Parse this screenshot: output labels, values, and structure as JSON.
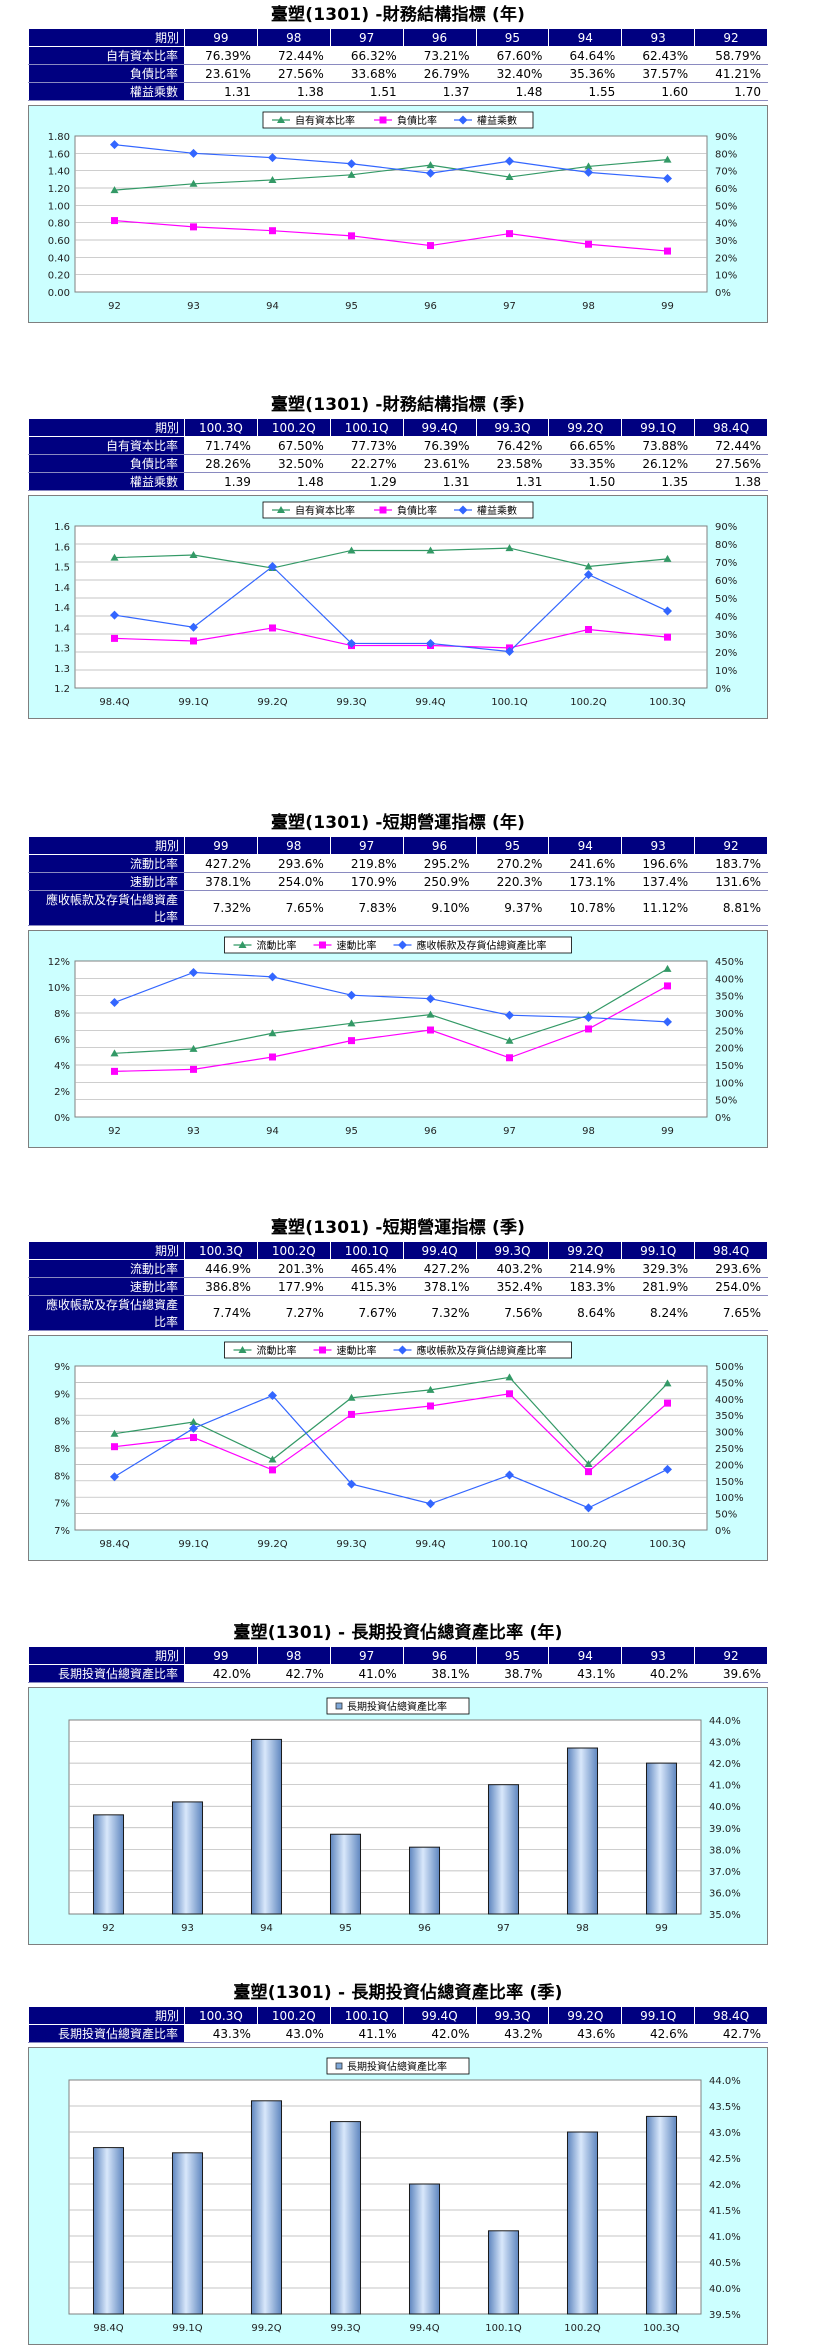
{
  "sections": [
    {
      "id": "s1",
      "title": "臺塑(1301) -財務結構指標 (年)",
      "headers": [
        "期別",
        "99",
        "98",
        "97",
        "96",
        "95",
        "94",
        "93",
        "92"
      ],
      "rows": [
        {
          "label": "自有資本比率",
          "values": [
            "76.39%",
            "72.44%",
            "66.32%",
            "73.21%",
            "67.60%",
            "64.64%",
            "62.43%",
            "58.79%"
          ]
        },
        {
          "label": "負債比率",
          "values": [
            "23.61%",
            "27.56%",
            "33.68%",
            "26.79%",
            "32.40%",
            "35.36%",
            "37.57%",
            "41.21%"
          ]
        },
        {
          "label": "權益乘數",
          "values": [
            "1.31",
            "1.38",
            "1.51",
            "1.37",
            "1.48",
            "1.55",
            "1.60",
            "1.70"
          ]
        }
      ]
    },
    {
      "id": "s2",
      "title": "臺塑(1301) -財務結構指標 (季)",
      "headers": [
        "期別",
        "100.3Q",
        "100.2Q",
        "100.1Q",
        "99.4Q",
        "99.3Q",
        "99.2Q",
        "99.1Q",
        "98.4Q"
      ],
      "rows": [
        {
          "label": "自有資本比率",
          "values": [
            "71.74%",
            "67.50%",
            "77.73%",
            "76.39%",
            "76.42%",
            "66.65%",
            "73.88%",
            "72.44%"
          ]
        },
        {
          "label": "負債比率",
          "values": [
            "28.26%",
            "32.50%",
            "22.27%",
            "23.61%",
            "23.58%",
            "33.35%",
            "26.12%",
            "27.56%"
          ]
        },
        {
          "label": "權益乘數",
          "values": [
            "1.39",
            "1.48",
            "1.29",
            "1.31",
            "1.31",
            "1.50",
            "1.35",
            "1.38"
          ]
        }
      ]
    },
    {
      "id": "s3",
      "title": "臺塑(1301) -短期營運指標 (年)",
      "headers": [
        "期別",
        "99",
        "98",
        "97",
        "96",
        "95",
        "94",
        "93",
        "92"
      ],
      "rows": [
        {
          "label": "流動比率",
          "values": [
            "427.2%",
            "293.6%",
            "219.8%",
            "295.2%",
            "270.2%",
            "241.6%",
            "196.6%",
            "183.7%"
          ]
        },
        {
          "label": "速動比率",
          "values": [
            "378.1%",
            "254.0%",
            "170.9%",
            "250.9%",
            "220.3%",
            "173.1%",
            "137.4%",
            "131.6%"
          ]
        },
        {
          "label": "應收帳款及存貨佔總資產比率",
          "values": [
            "7.32%",
            "7.65%",
            "7.83%",
            "9.10%",
            "9.37%",
            "10.78%",
            "11.12%",
            "8.81%"
          ]
        }
      ]
    },
    {
      "id": "s4",
      "title": "臺塑(1301) -短期營運指標 (季)",
      "headers": [
        "期別",
        "100.3Q",
        "100.2Q",
        "100.1Q",
        "99.4Q",
        "99.3Q",
        "99.2Q",
        "99.1Q",
        "98.4Q"
      ],
      "rows": [
        {
          "label": "流動比率",
          "values": [
            "446.9%",
            "201.3%",
            "465.4%",
            "427.2%",
            "403.2%",
            "214.9%",
            "329.3%",
            "293.6%"
          ]
        },
        {
          "label": "速動比率",
          "values": [
            "386.8%",
            "177.9%",
            "415.3%",
            "378.1%",
            "352.4%",
            "183.3%",
            "281.9%",
            "254.0%"
          ]
        },
        {
          "label": "應收帳款及存貨佔總資產比率",
          "values": [
            "7.74%",
            "7.27%",
            "7.67%",
            "7.32%",
            "7.56%",
            "8.64%",
            "8.24%",
            "7.65%"
          ]
        }
      ]
    },
    {
      "id": "s5",
      "title": "臺塑(1301) - 長期投資佔總資產比率 (年)",
      "headers": [
        "期別",
        "99",
        "98",
        "97",
        "96",
        "95",
        "94",
        "93",
        "92"
      ],
      "rows": [
        {
          "label": "長期投資佔總資產比率",
          "values": [
            "42.0%",
            "42.7%",
            "41.0%",
            "38.1%",
            "38.7%",
            "43.1%",
            "40.2%",
            "39.6%"
          ]
        }
      ]
    },
    {
      "id": "s6",
      "title": "臺塑(1301) - 長期投資佔總資產比率 (季)",
      "headers": [
        "期別",
        "100.3Q",
        "100.2Q",
        "100.1Q",
        "99.4Q",
        "99.3Q",
        "99.2Q",
        "99.1Q",
        "98.4Q"
      ],
      "rows": [
        {
          "label": "長期投資佔總資產比率",
          "values": [
            "43.3%",
            "43.0%",
            "41.1%",
            "42.0%",
            "43.2%",
            "43.6%",
            "42.6%",
            "42.7%"
          ]
        }
      ]
    }
  ],
  "chart_data": [
    {
      "type": "line",
      "x": [
        "92",
        "93",
        "94",
        "95",
        "96",
        "97",
        "98",
        "99"
      ],
      "left_axis": {
        "min": 0,
        "max": 1.8,
        "step": 0.2,
        "decimals": 2,
        "suffix": ""
      },
      "right_axis": {
        "min": 0,
        "max": 90,
        "step": 10,
        "decimals": 0,
        "suffix": "%"
      },
      "legend": "top-center",
      "grid": true,
      "series": [
        {
          "name": "自有資本比率",
          "axis": "right",
          "color": "#339966",
          "marker": "triangle",
          "values": [
            58.79,
            62.43,
            64.64,
            67.6,
            73.21,
            66.32,
            72.44,
            76.39
          ]
        },
        {
          "name": "負債比率",
          "axis": "right",
          "color": "#ff00ff",
          "marker": "square",
          "values": [
            41.21,
            37.57,
            35.36,
            32.4,
            26.79,
            33.68,
            27.56,
            23.61
          ]
        },
        {
          "name": "權益乘數",
          "axis": "left",
          "color": "#3366ff",
          "marker": "diamond",
          "values": [
            1.7,
            1.6,
            1.55,
            1.48,
            1.37,
            1.51,
            1.38,
            1.31
          ]
        }
      ]
    },
    {
      "type": "line",
      "x": [
        "98.4Q",
        "99.1Q",
        "99.2Q",
        "99.3Q",
        "99.4Q",
        "100.1Q",
        "100.2Q",
        "100.3Q"
      ],
      "left_axis": {
        "min": 1.2,
        "max": 1.6,
        "step": 0.05,
        "decimals": 1,
        "suffix": ""
      },
      "right_axis": {
        "min": 0,
        "max": 90,
        "step": 10,
        "decimals": 0,
        "suffix": "%"
      },
      "legend": "top-center",
      "grid": true,
      "series": [
        {
          "name": "自有資本比率",
          "axis": "right",
          "color": "#339966",
          "marker": "triangle",
          "values": [
            72.44,
            73.88,
            66.65,
            76.42,
            76.39,
            77.73,
            67.5,
            71.74
          ]
        },
        {
          "name": "負債比率",
          "axis": "right",
          "color": "#ff00ff",
          "marker": "square",
          "values": [
            27.56,
            26.12,
            33.35,
            23.58,
            23.61,
            22.27,
            32.5,
            28.26
          ]
        },
        {
          "name": "權益乘數",
          "axis": "left",
          "color": "#3366ff",
          "marker": "diamond",
          "values": [
            1.38,
            1.35,
            1.5,
            1.31,
            1.31,
            1.29,
            1.48,
            1.39
          ]
        }
      ]
    },
    {
      "type": "line",
      "x": [
        "92",
        "93",
        "94",
        "95",
        "96",
        "97",
        "98",
        "99"
      ],
      "left_axis": {
        "min": 0,
        "max": 12,
        "step": 2,
        "decimals": 0,
        "suffix": "%"
      },
      "right_axis": {
        "min": 0,
        "max": 450,
        "step": 50,
        "decimals": 0,
        "suffix": "%"
      },
      "legend": "top-center",
      "grid": true,
      "series": [
        {
          "name": "流動比率",
          "axis": "right",
          "color": "#339966",
          "marker": "triangle",
          "values": [
            183.7,
            196.6,
            241.6,
            270.2,
            295.2,
            219.8,
            293.6,
            427.2
          ]
        },
        {
          "name": "速動比率",
          "axis": "right",
          "color": "#ff00ff",
          "marker": "square",
          "values": [
            131.6,
            137.4,
            173.1,
            220.3,
            250.9,
            170.9,
            254.0,
            378.1
          ]
        },
        {
          "name": "應收帳款及存貨佔總資產比率",
          "axis": "left",
          "color": "#3366ff",
          "marker": "diamond",
          "values": [
            8.81,
            11.12,
            10.78,
            9.37,
            9.1,
            7.83,
            7.65,
            7.32
          ]
        }
      ]
    },
    {
      "type": "line",
      "x": [
        "98.4Q",
        "99.1Q",
        "99.2Q",
        "99.3Q",
        "99.4Q",
        "100.1Q",
        "100.2Q",
        "100.3Q"
      ],
      "left_axis": {
        "min": 7,
        "max": 9,
        "step": 0.333333,
        "decimals": 0,
        "suffix": "%",
        "labels": [
          "7%",
          "7%",
          "8%",
          "8%",
          "8%",
          "9%",
          "9%"
        ]
      },
      "right_axis": {
        "min": 0,
        "max": 500,
        "step": 50,
        "decimals": 0,
        "suffix": "%"
      },
      "legend": "top-center",
      "grid": true,
      "series": [
        {
          "name": "流動比率",
          "axis": "right",
          "color": "#339966",
          "marker": "triangle",
          "values": [
            293.6,
            329.3,
            214.9,
            403.2,
            427.2,
            465.4,
            201.3,
            446.9
          ]
        },
        {
          "name": "速動比率",
          "axis": "right",
          "color": "#ff00ff",
          "marker": "square",
          "values": [
            254.0,
            281.9,
            183.3,
            352.4,
            378.1,
            415.3,
            177.9,
            386.8
          ]
        },
        {
          "name": "應收帳款及存貨佔總資產比率",
          "axis": "left",
          "color": "#3366ff",
          "marker": "diamond",
          "values": [
            7.65,
            8.24,
            8.64,
            7.56,
            7.32,
            7.67,
            7.27,
            7.74
          ]
        }
      ]
    },
    {
      "type": "bar",
      "categories": [
        "92",
        "93",
        "94",
        "95",
        "96",
        "97",
        "98",
        "99"
      ],
      "right_axis": {
        "min": 35,
        "max": 44,
        "step": 1,
        "decimals": 1,
        "suffix": "%"
      },
      "legend": "top-center",
      "grid": true,
      "series": [
        {
          "name": "長期投資佔總資產比率",
          "color": "#7fa8d8",
          "values": [
            39.6,
            40.2,
            43.1,
            38.7,
            38.1,
            41.0,
            42.7,
            42.0
          ]
        }
      ]
    },
    {
      "type": "bar",
      "categories": [
        "98.4Q",
        "99.1Q",
        "99.2Q",
        "99.3Q",
        "99.4Q",
        "100.1Q",
        "100.2Q",
        "100.3Q"
      ],
      "right_axis": {
        "min": 39.5,
        "max": 44,
        "step": 0.5,
        "decimals": 1,
        "suffix": "%"
      },
      "legend": "top-center",
      "grid": true,
      "series": [
        {
          "name": "長期投資佔總資產比率",
          "color": "#7fa8d8",
          "values": [
            42.7,
            42.6,
            43.6,
            43.2,
            42.0,
            41.1,
            43.0,
            43.3
          ]
        }
      ]
    }
  ]
}
